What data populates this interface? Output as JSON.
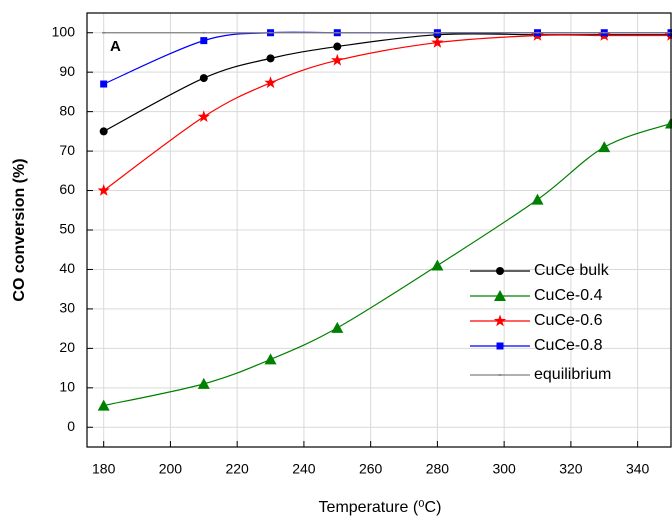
{
  "chart_data": {
    "type": "line",
    "x_label": "Temperature (⁰C)",
    "y_label": "CO conversion (%)",
    "annotation": "A",
    "x": [
      180,
      210,
      230,
      250,
      280,
      310,
      330,
      350
    ],
    "series": [
      {
        "name": "CuCe bulk",
        "color": "#000000",
        "marker": "circle",
        "values": [
          75,
          88.5,
          93.5,
          96.5,
          99.5,
          99.5,
          99.5,
          99.5
        ]
      },
      {
        "name": "CuCe-0.4",
        "color": "#008000",
        "marker": "triangle",
        "values": [
          5.5,
          11,
          17.2,
          25.2,
          41,
          57.7,
          71,
          77
        ]
      },
      {
        "name": "CuCe-0.6",
        "color": "#ff0000",
        "marker": "star",
        "values": [
          60,
          78.7,
          87.3,
          93,
          97.5,
          99.3,
          99.3,
          99.3
        ]
      },
      {
        "name": "CuCe-0.8",
        "color": "#0000ff",
        "marker": "square",
        "values": [
          87,
          98,
          100,
          100,
          100,
          100,
          100,
          100
        ]
      },
      {
        "name": "equilibrium",
        "color": "#808080",
        "marker": "dash",
        "values": [
          100,
          100,
          100,
          100,
          100,
          100,
          100,
          100
        ]
      }
    ],
    "xlim": [
      175,
      350
    ],
    "ylim": [
      -5,
      105
    ],
    "xticks": [
      180,
      200,
      220,
      240,
      260,
      280,
      300,
      320,
      340
    ],
    "yticks": [
      0,
      10,
      20,
      30,
      40,
      50,
      60,
      70,
      80,
      90,
      100
    ],
    "grid": true,
    "legend": "lower-right"
  }
}
